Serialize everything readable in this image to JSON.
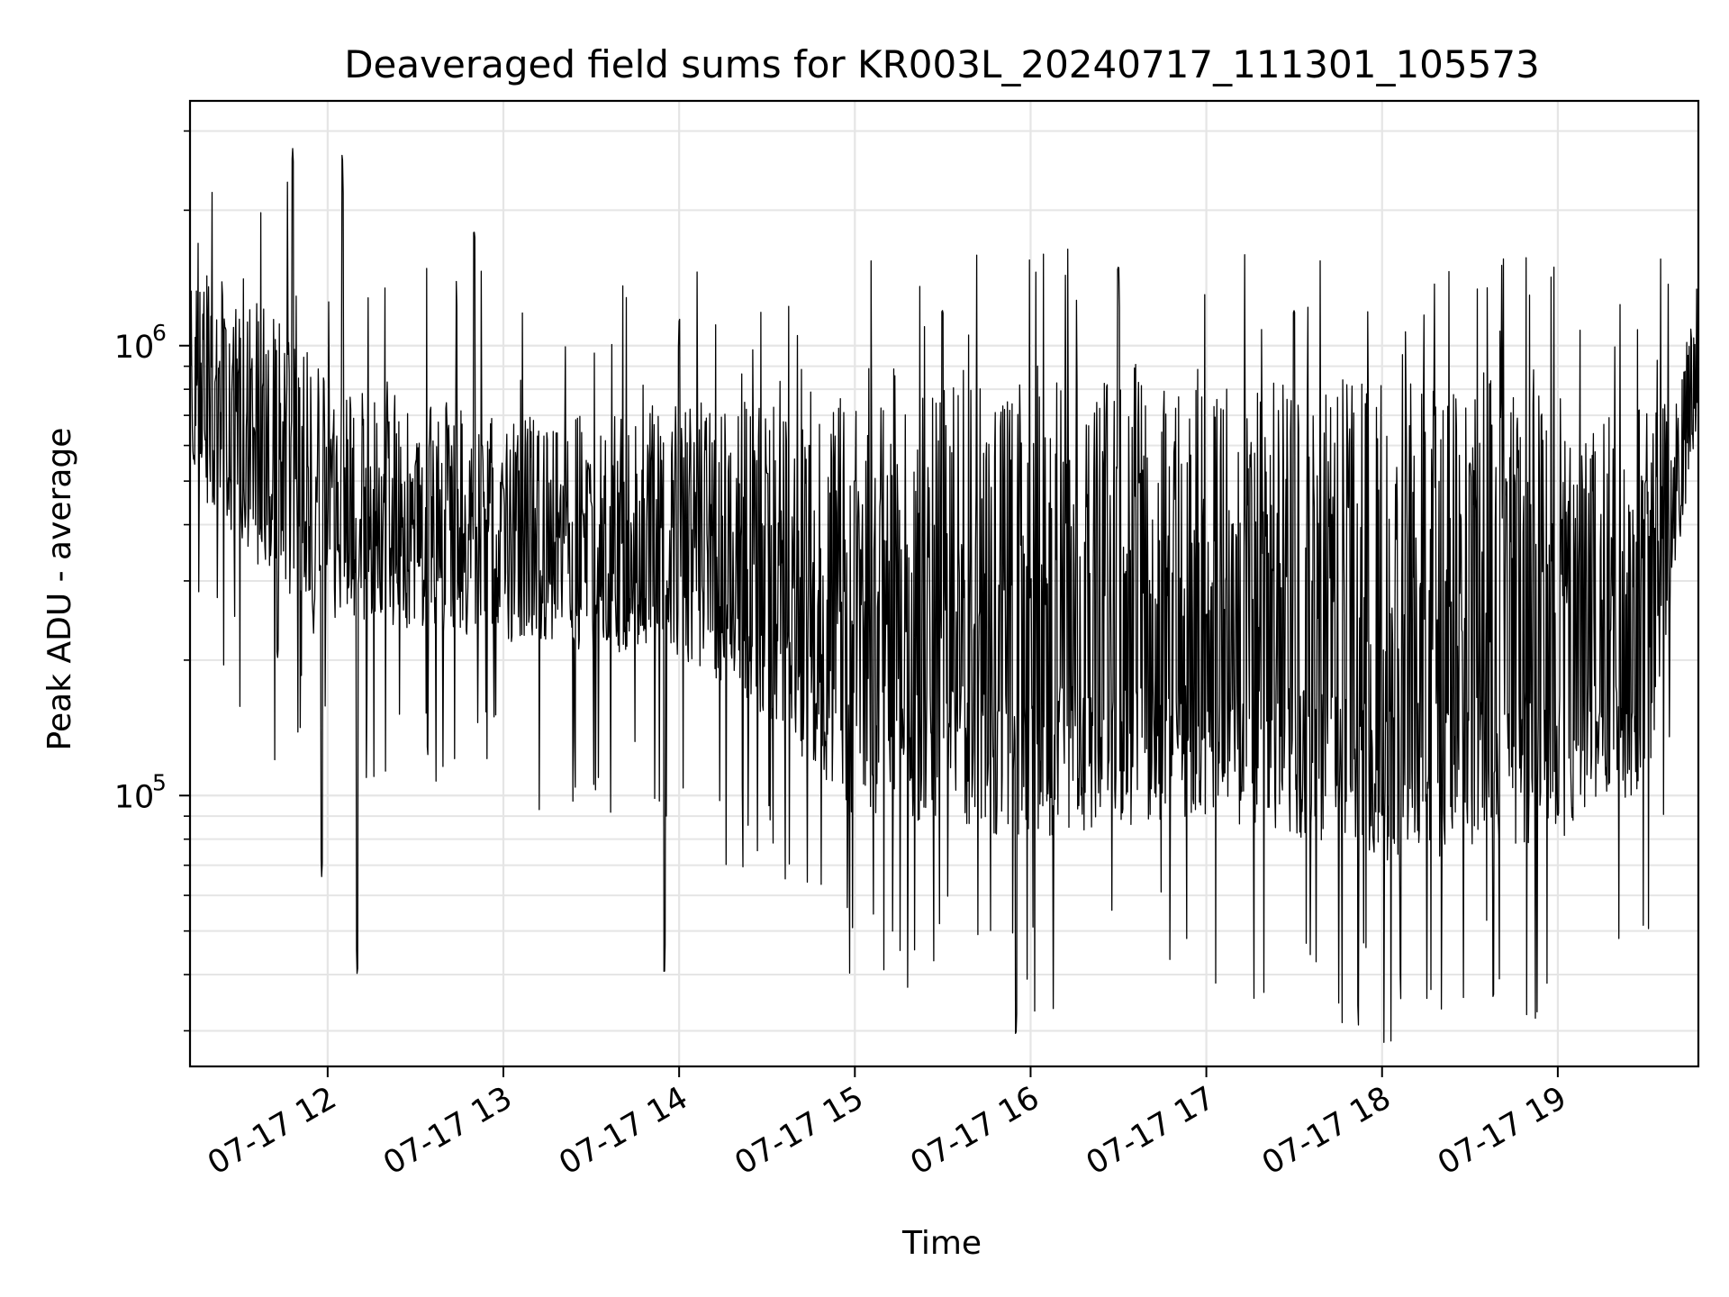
{
  "chart_data": {
    "type": "line",
    "title": "Deaveraged field sums for KR003L_20240717_111301_105573",
    "xlabel": "Time",
    "ylabel": "Peak ADU - average",
    "x_axis": {
      "kind": "datetime",
      "range": [
        "07-17 11:13",
        "07-17 19:48"
      ],
      "ticks": [
        "07-17 12:00",
        "07-17 13:00",
        "07-17 14:00",
        "07-17 15:00",
        "07-17 16:00",
        "07-17 17:00",
        "07-17 18:00",
        "07-17 19:00"
      ],
      "tick_labels": [
        "07-17 12",
        "07-17 13",
        "07-17 14",
        "07-17 15",
        "07-17 16",
        "07-17 17",
        "07-17 18",
        "07-17 19"
      ]
    },
    "y_axis": {
      "scale": "log",
      "range": [
        25000,
        3500000
      ],
      "major_ticks": [
        100000,
        1000000
      ],
      "major_tick_labels": [
        {
          "base": "10",
          "exp": "5"
        },
        {
          "base": "10",
          "exp": "6"
        }
      ],
      "minor_ticks": [
        30000,
        40000,
        50000,
        60000,
        70000,
        80000,
        90000,
        200000,
        300000,
        400000,
        500000,
        600000,
        700000,
        800000,
        900000,
        2000000,
        3000000
      ]
    },
    "grid": true,
    "legend": "none",
    "series_color": "#000000",
    "grid_color": "#e5e5e5",
    "series": [
      {
        "points": [
          {
            "x": "07-17 11:13",
            "y": 900000
          },
          {
            "x": "07-17 11:25",
            "y": 1100000
          },
          {
            "x": "07-17 11:35",
            "y": 650000
          },
          {
            "x": "07-17 11:43",
            "y": 200000
          },
          {
            "x": "07-17 11:48",
            "y": 2800000
          },
          {
            "x": "07-17 11:55",
            "y": 250000
          },
          {
            "x": "07-17 11:58",
            "y": 65000
          },
          {
            "x": "07-17 12:05",
            "y": 2800000
          },
          {
            "x": "07-17 12:10",
            "y": 40000
          },
          {
            "x": "07-17 12:30",
            "y": 550000
          },
          {
            "x": "07-17 12:50",
            "y": 1800000
          },
          {
            "x": "07-17 13:00",
            "y": 480000
          },
          {
            "x": "07-17 13:30",
            "y": 450000
          },
          {
            "x": "07-17 13:55",
            "y": 40000
          },
          {
            "x": "07-17 14:00",
            "y": 1150000
          },
          {
            "x": "07-17 14:30",
            "y": 520000
          },
          {
            "x": "07-17 15:00",
            "y": 500000
          },
          {
            "x": "07-17 15:30",
            "y": 1200000
          },
          {
            "x": "07-17 15:55",
            "y": 29000
          },
          {
            "x": "07-17 16:00",
            "y": 300000
          },
          {
            "x": "07-17 16:30",
            "y": 1500000
          },
          {
            "x": "07-17 17:00",
            "y": 250000
          },
          {
            "x": "07-17 17:30",
            "y": 1200000
          },
          {
            "x": "07-17 18:00",
            "y": 90000
          },
          {
            "x": "07-17 18:30",
            "y": 550000
          },
          {
            "x": "07-17 19:00",
            "y": 90000
          },
          {
            "x": "07-17 19:30",
            "y": 500000
          },
          {
            "x": "07-17 19:48",
            "y": 900000
          }
        ]
      }
    ]
  }
}
